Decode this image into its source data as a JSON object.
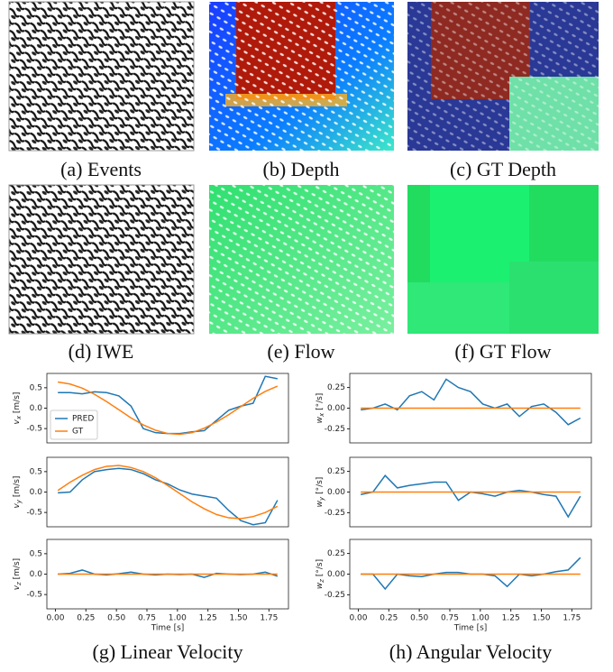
{
  "images": [
    {
      "caption": "(a) Events"
    },
    {
      "caption": "(b) Depth"
    },
    {
      "caption": "(c) GT Depth"
    },
    {
      "caption": "(d) IWE"
    },
    {
      "caption": "(e) Flow"
    },
    {
      "caption": "(f) GT Flow"
    }
  ],
  "chart_captions": [
    "(g) Linear Velocity",
    "(h) Angular Velocity"
  ],
  "chart_data": [
    {
      "type": "line",
      "ylabel": {
        "symbol": "v",
        "sub": "x",
        "unit": "[m/s]"
      },
      "legend": "lower left",
      "x": [
        0.02,
        0.12,
        0.22,
        0.32,
        0.42,
        0.52,
        0.62,
        0.72,
        0.82,
        0.92,
        1.02,
        1.12,
        1.22,
        1.32,
        1.42,
        1.52,
        1.62,
        1.72,
        1.82
      ],
      "xlim": [
        -0.07,
        1.91
      ],
      "ylim": [
        -0.85,
        0.85
      ],
      "yticks": [
        -0.5,
        {
          "value": 0,
          "label": "0.0"
        },
        0.5
      ],
      "series": [
        {
          "name": "PRED",
          "color": "#1f77b4",
          "values": [
            0.38,
            0.38,
            0.35,
            0.4,
            0.38,
            0.3,
            0.05,
            -0.5,
            -0.6,
            -0.62,
            -0.62,
            -0.58,
            -0.55,
            -0.3,
            -0.05,
            0.05,
            0.12,
            0.78,
            0.72
          ]
        },
        {
          "name": "GT",
          "color": "#ff7f0e",
          "values": [
            0.64,
            0.59,
            0.49,
            0.34,
            0.16,
            -0.04,
            -0.24,
            -0.41,
            -0.54,
            -0.62,
            -0.64,
            -0.6,
            -0.49,
            -0.34,
            -0.16,
            0.04,
            0.24,
            0.41,
            0.54
          ]
        }
      ]
    },
    {
      "type": "line",
      "ylabel": {
        "symbol": "v",
        "sub": "y",
        "unit": "[m/s]"
      },
      "x": [
        0.02,
        0.12,
        0.22,
        0.32,
        0.42,
        0.52,
        0.62,
        0.72,
        0.82,
        0.92,
        1.02,
        1.12,
        1.22,
        1.32,
        1.42,
        1.52,
        1.62,
        1.72,
        1.82
      ],
      "xlim": [
        -0.07,
        1.91
      ],
      "ylim": [
        -0.85,
        0.85
      ],
      "yticks": [
        -0.5,
        {
          "value": 0,
          "label": "0.0"
        },
        0.5
      ],
      "series": [
        {
          "color": "#1f77b4",
          "values": [
            -0.02,
            0.0,
            0.3,
            0.5,
            0.55,
            0.58,
            0.55,
            0.45,
            0.3,
            0.2,
            0.05,
            -0.05,
            -0.1,
            -0.15,
            -0.45,
            -0.7,
            -0.8,
            -0.75,
            -0.2
          ]
        },
        {
          "color": "#ff7f0e",
          "values": [
            0.04,
            0.24,
            0.41,
            0.55,
            0.63,
            0.65,
            0.6,
            0.5,
            0.35,
            0.16,
            -0.04,
            -0.24,
            -0.41,
            -0.55,
            -0.63,
            -0.65,
            -0.6,
            -0.5,
            -0.35
          ]
        }
      ]
    },
    {
      "type": "line",
      "ylabel": {
        "symbol": "v",
        "sub": "z",
        "unit": "[m/s]"
      },
      "xlabel": "Time [s]",
      "x": [
        0.02,
        0.12,
        0.22,
        0.32,
        0.42,
        0.52,
        0.62,
        0.72,
        0.82,
        0.92,
        1.02,
        1.12,
        1.22,
        1.32,
        1.42,
        1.52,
        1.62,
        1.72,
        1.82
      ],
      "xlim": [
        -0.07,
        1.91
      ],
      "ylim": [
        -0.85,
        0.85
      ],
      "yticks": [
        -0.5,
        {
          "value": 0,
          "label": "0.0"
        },
        0.5
      ],
      "xticks": [
        {
          "value": 0,
          "label": "0.00"
        },
        0.25,
        {
          "value": 0.5,
          "label": "0.50"
        },
        0.75,
        {
          "value": 1,
          "label": "1.00"
        },
        1.25,
        {
          "value": 1.5,
          "label": "1.50"
        },
        1.75
      ],
      "series": [
        {
          "color": "#1f77b4",
          "values": [
            0,
            0.02,
            0.1,
            0,
            -0.02,
            0.01,
            0.05,
            0,
            -0.02,
            0,
            -0.01,
            0,
            -0.08,
            0.02,
            0,
            -0.01,
            0,
            0.05,
            -0.05
          ]
        },
        {
          "color": "#ff7f0e",
          "values": [
            0,
            0,
            0,
            0,
            0,
            0,
            0,
            0,
            0,
            0,
            0,
            0,
            0,
            0,
            0,
            0,
            0,
            0,
            0
          ]
        }
      ]
    },
    {
      "type": "line",
      "ylabel": {
        "symbol": "w",
        "sub": "x",
        "unit": "[°/s]"
      },
      "x": [
        0.02,
        0.12,
        0.22,
        0.32,
        0.42,
        0.52,
        0.62,
        0.72,
        0.82,
        0.92,
        1.02,
        1.12,
        1.22,
        1.32,
        1.42,
        1.52,
        1.62,
        1.72,
        1.82
      ],
      "xlim": [
        -0.07,
        1.91
      ],
      "ylim": [
        -0.42,
        0.42
      ],
      "yticks": [
        -0.25,
        {
          "value": 0,
          "label": "0.00"
        },
        0.25
      ],
      "series": [
        {
          "color": "#1f77b4",
          "values": [
            -0.02,
            0,
            0.05,
            -0.02,
            0.15,
            0.2,
            0.1,
            0.35,
            0.25,
            0.2,
            0.05,
            0.0,
            0.05,
            -0.1,
            0.02,
            0.05,
            -0.05,
            -0.2,
            -0.12
          ]
        },
        {
          "color": "#ff7f0e",
          "values": [
            0,
            0,
            0,
            0,
            0,
            0,
            0,
            0,
            0,
            0,
            0,
            0,
            0,
            0,
            0,
            0,
            0,
            0,
            0
          ]
        }
      ]
    },
    {
      "type": "line",
      "ylabel": {
        "symbol": "w",
        "sub": "y",
        "unit": "[°/s]"
      },
      "x": [
        0.02,
        0.12,
        0.22,
        0.32,
        0.42,
        0.52,
        0.62,
        0.72,
        0.82,
        0.92,
        1.02,
        1.12,
        1.22,
        1.32,
        1.42,
        1.52,
        1.62,
        1.72,
        1.82
      ],
      "xlim": [
        -0.07,
        1.91
      ],
      "ylim": [
        -0.42,
        0.42
      ],
      "yticks": [
        -0.25,
        {
          "value": 0,
          "label": "0.00"
        },
        0.25
      ],
      "series": [
        {
          "color": "#1f77b4",
          "values": [
            -0.03,
            0.0,
            0.2,
            0.05,
            0.08,
            0.1,
            0.12,
            0.12,
            -0.1,
            0.0,
            -0.02,
            -0.05,
            0.0,
            0.02,
            0.0,
            -0.03,
            -0.05,
            -0.3,
            -0.05
          ]
        },
        {
          "color": "#ff7f0e",
          "values": [
            0,
            0,
            0,
            0,
            0,
            0,
            0,
            0,
            0,
            0,
            0,
            0,
            0,
            0,
            0,
            0,
            0,
            0,
            0
          ]
        }
      ]
    },
    {
      "type": "line",
      "ylabel": {
        "symbol": "w",
        "sub": "z",
        "unit": "[°/s]"
      },
      "xlabel": "Time [s]",
      "x": [
        0.02,
        0.12,
        0.22,
        0.32,
        0.42,
        0.52,
        0.62,
        0.72,
        0.82,
        0.92,
        1.02,
        1.12,
        1.22,
        1.32,
        1.42,
        1.52,
        1.62,
        1.72,
        1.82
      ],
      "xlim": [
        -0.07,
        1.91
      ],
      "ylim": [
        -0.42,
        0.42
      ],
      "yticks": [
        -0.25,
        {
          "value": 0,
          "label": "0.00"
        },
        0.25
      ],
      "xticks": [
        {
          "value": 0,
          "label": "0.00"
        },
        0.25,
        {
          "value": 0.5,
          "label": "0.50"
        },
        0.75,
        {
          "value": 1,
          "label": "1.00"
        },
        1.25,
        {
          "value": 1.5,
          "label": "1.50"
        },
        1.75
      ],
      "series": [
        {
          "color": "#1f77b4",
          "values": [
            0,
            0,
            -0.18,
            0,
            -0.02,
            -0.03,
            0,
            0.02,
            0.02,
            0,
            0,
            -0.02,
            -0.15,
            0,
            -0.02,
            0,
            0.03,
            0.05,
            0.2
          ]
        },
        {
          "color": "#ff7f0e",
          "values": [
            0,
            0,
            0,
            0,
            0,
            0,
            0,
            0,
            0,
            0,
            0,
            0,
            0,
            0,
            0,
            0,
            0,
            0,
            0
          ]
        }
      ]
    }
  ]
}
